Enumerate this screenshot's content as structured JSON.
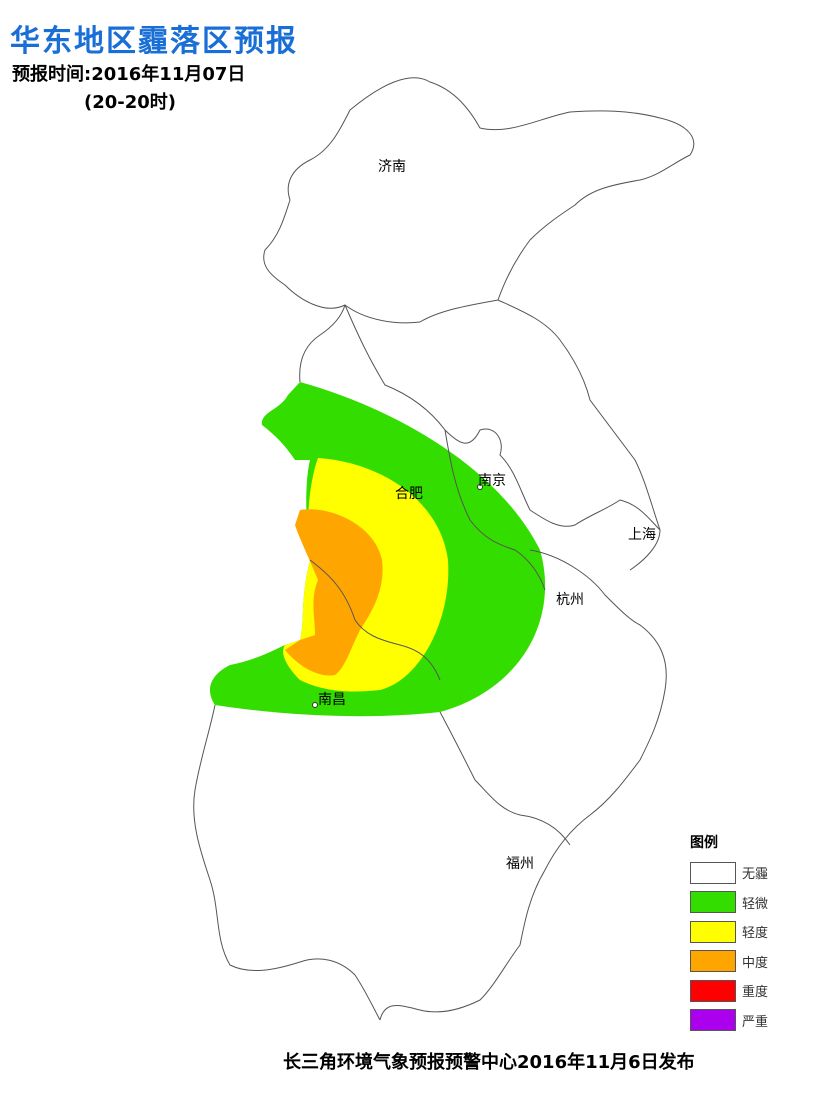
{
  "title": "华东地区霾落区预报",
  "forecast_time": "预报时间:2016年11月07日",
  "forecast_period": "(20-20时)",
  "cities": {
    "jinan": "济南",
    "hefei": "合肥",
    "nanjing": "南京",
    "shanghai": "上海",
    "hangzhou": "杭州",
    "nanchang": "南昌",
    "fuzhou": "福州"
  },
  "legend": {
    "title": "图例",
    "items": [
      {
        "label": "无霾",
        "color": "#ffffff"
      },
      {
        "label": "轻微",
        "color": "#33dd00"
      },
      {
        "label": "轻度",
        "color": "#ffff00"
      },
      {
        "label": "中度",
        "color": "#ffa500"
      },
      {
        "label": "重度",
        "color": "#ff0000"
      },
      {
        "label": "严重",
        "color": "#aa00ee"
      }
    ]
  },
  "footer": "长三角环境气象预报预警中心2016年11月6日发布"
}
